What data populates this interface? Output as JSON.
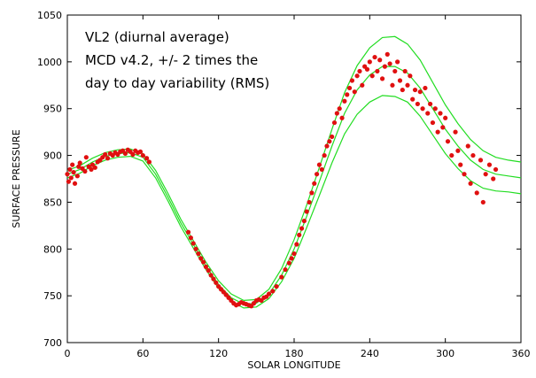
{
  "chart_data": {
    "type": "scatter",
    "xlabel": "SOLAR LONGITUDE",
    "ylabel": "SURFACE PRESSURE",
    "xlim": [
      0,
      360
    ],
    "xticks": [
      0,
      60,
      120,
      180,
      240,
      300,
      360
    ],
    "ylim": [
      700,
      1050
    ],
    "yticks": [
      700,
      750,
      800,
      850,
      900,
      950,
      1000,
      1050
    ],
    "annotations": [
      {
        "text": "VL2 (diurnal average)",
        "color": "#e01010"
      },
      {
        "text": "MCD v4.2, +/- 2 times the",
        "color": "#22dd22"
      },
      {
        "text": "day to day variability (RMS)",
        "color": "#22dd22"
      }
    ],
    "series": [
      {
        "mode": "markers",
        "color": "#e01010",
        "x": [
          0,
          1,
          2,
          3,
          4,
          5,
          6,
          8,
          9,
          10,
          12,
          14,
          15,
          17,
          19,
          20,
          22,
          24,
          26,
          28,
          30,
          32,
          34,
          36,
          38,
          40,
          42,
          44,
          46,
          48,
          50,
          52,
          54,
          56,
          58,
          60,
          63,
          65,
          96,
          98,
          100,
          102,
          104,
          106,
          108,
          110,
          112,
          114,
          116,
          118,
          120,
          122,
          124,
          126,
          128,
          130,
          132,
          134,
          136,
          138,
          140,
          142,
          144,
          146,
          148,
          150,
          152,
          154,
          156,
          158,
          160,
          163,
          166,
          170,
          173,
          176,
          178,
          180,
          182,
          184,
          186,
          188,
          190,
          192,
          194,
          196,
          198,
          200,
          202,
          204,
          206,
          208,
          210,
          212,
          214,
          216,
          218,
          220,
          222,
          224,
          226,
          228,
          230,
          232,
          234,
          236,
          238,
          240,
          242,
          244,
          246,
          248,
          250,
          252,
          254,
          256,
          258,
          260,
          262,
          264,
          266,
          268,
          270,
          272,
          274,
          276,
          278,
          280,
          282,
          284,
          286,
          288,
          290,
          292,
          294,
          296,
          298,
          300,
          302,
          305,
          308,
          310,
          312,
          315,
          318,
          320,
          322,
          325,
          328,
          330,
          332,
          335,
          338,
          340
        ],
        "values": [
          880,
          872,
          885,
          876,
          890,
          882,
          870,
          878,
          888,
          892,
          886,
          883,
          898,
          888,
          885,
          890,
          887,
          893,
          895,
          898,
          901,
          897,
          902,
          900,
          903,
          901,
          904,
          905,
          902,
          906,
          904,
          901,
          905,
          903,
          904,
          900,
          897,
          893,
          818,
          812,
          806,
          800,
          795,
          790,
          786,
          781,
          777,
          772,
          768,
          764,
          760,
          757,
          754,
          751,
          748,
          745,
          742,
          740,
          741,
          743,
          742,
          741,
          740,
          739,
          742,
          745,
          746,
          745,
          748,
          749,
          752,
          755,
          760,
          770,
          778,
          785,
          790,
          795,
          805,
          815,
          822,
          830,
          840,
          850,
          860,
          870,
          880,
          890,
          885,
          900,
          910,
          915,
          920,
          935,
          945,
          950,
          940,
          958,
          965,
          972,
          980,
          968,
          985,
          990,
          975,
          995,
          992,
          1000,
          985,
          1005,
          990,
          1002,
          982,
          995,
          1008,
          998,
          975,
          990,
          1000,
          980,
          970,
          990,
          975,
          985,
          960,
          970,
          955,
          968,
          950,
          972,
          945,
          955,
          935,
          950,
          925,
          945,
          930,
          940,
          915,
          900,
          925,
          905,
          890,
          880,
          910,
          870,
          900,
          860,
          895,
          850,
          880,
          890,
          875,
          885
        ]
      },
      {
        "mode": "lines",
        "color": "#22dd22",
        "x": [
          0,
          10,
          20,
          30,
          40,
          50,
          60,
          70,
          80,
          90,
          100,
          110,
          120,
          130,
          140,
          150,
          160,
          170,
          180,
          190,
          200,
          210,
          220,
          230,
          240,
          250,
          260,
          270,
          280,
          290,
          300,
          310,
          320,
          330,
          340,
          350,
          360
        ],
        "values": [
          884,
          889,
          897,
          903,
          906,
          907,
          902,
          884,
          859,
          832,
          809,
          786,
          766,
          752,
          745,
          746,
          757,
          779,
          810,
          847,
          887,
          928,
          967,
          996,
          1015,
          1026,
          1027,
          1019,
          1002,
          978,
          954,
          934,
          917,
          905,
          898,
          895,
          893
        ]
      },
      {
        "mode": "lines",
        "color": "#22dd22",
        "x": [
          0,
          10,
          20,
          30,
          40,
          50,
          60,
          70,
          80,
          90,
          100,
          110,
          120,
          130,
          140,
          150,
          160,
          170,
          180,
          190,
          200,
          210,
          220,
          230,
          240,
          250,
          260,
          270,
          280,
          290,
          300,
          310,
          320,
          330,
          340,
          350,
          360
        ],
        "values": [
          880,
          885,
          893,
          899,
          902,
          903,
          898,
          880,
          855,
          828,
          805,
          782,
          762,
          748,
          741,
          742,
          752,
          772,
          800,
          835,
          872,
          910,
          945,
          970,
          986,
          995,
          995,
          988,
          972,
          950,
          928,
          910,
          895,
          885,
          880,
          878,
          876
        ]
      },
      {
        "mode": "lines",
        "color": "#22dd22",
        "x": [
          0,
          10,
          20,
          30,
          40,
          50,
          60,
          70,
          80,
          90,
          100,
          110,
          120,
          130,
          140,
          150,
          160,
          170,
          180,
          190,
          200,
          210,
          220,
          230,
          240,
          250,
          260,
          270,
          280,
          290,
          300,
          310,
          320,
          330,
          340,
          350,
          360
        ],
        "values": [
          876,
          881,
          889,
          895,
          898,
          899,
          894,
          876,
          851,
          824,
          801,
          778,
          758,
          744,
          737,
          738,
          747,
          765,
          790,
          823,
          857,
          892,
          923,
          944,
          957,
          964,
          963,
          957,
          942,
          922,
          902,
          886,
          873,
          865,
          862,
          861,
          859
        ]
      }
    ]
  }
}
